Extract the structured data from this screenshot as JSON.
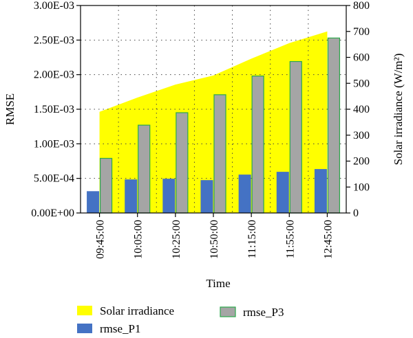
{
  "chart_data": {
    "type": "bar",
    "categories": [
      "09:45:00",
      "10:05:00",
      "10:25:00",
      "10:50:00",
      "11:15:00",
      "11:55:00",
      "12:45:00"
    ],
    "xlabel": "Time",
    "ylabel": "RMSE",
    "y2label": "Solar irradiance (W/m²)",
    "ylim": [
      0,
      0.003
    ],
    "y2lim": [
      0,
      800
    ],
    "yticks": [
      "0.00E+00",
      "5.00E-04",
      "1.00E-03",
      "1.50E-03",
      "2.00E-03",
      "2.50E-03",
      "3.00E-03"
    ],
    "y2ticks": [
      "0",
      "100",
      "200",
      "300",
      "400",
      "500",
      "600",
      "700",
      "800"
    ],
    "grid": true,
    "legend_position": "bottom",
    "series": [
      {
        "name": "Solar irradiance",
        "kind": "area",
        "axis": "right",
        "color": "#ffff00",
        "values": [
          390,
          445,
          495,
          530,
          595,
          655,
          700
        ]
      },
      {
        "name": "rmse_P1",
        "kind": "bar",
        "axis": "left",
        "color": "#4472c4",
        "values": [
          0.00031,
          0.00048,
          0.00049,
          0.00047,
          0.00055,
          0.00059,
          0.00063
        ]
      },
      {
        "name": "rmse_P3",
        "kind": "bar",
        "axis": "left",
        "color": "#a5a5a5",
        "values": [
          0.00079,
          0.00127,
          0.00145,
          0.00171,
          0.00198,
          0.00219,
          0.00253
        ]
      }
    ]
  }
}
